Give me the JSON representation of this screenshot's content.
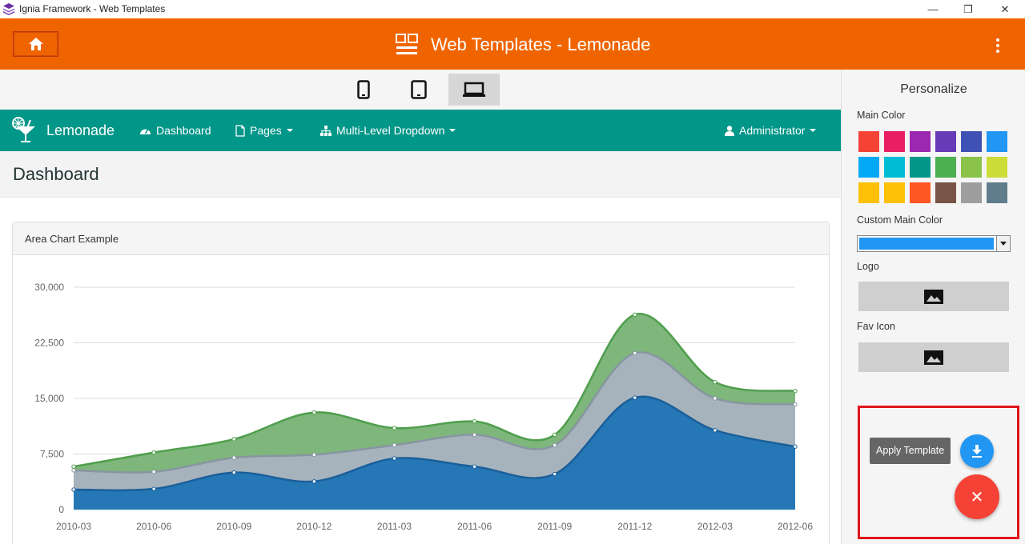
{
  "window": {
    "title": "Ignia Framework - Web Templates",
    "minimize": "—",
    "maximize": "❐",
    "close": "✕"
  },
  "appbar": {
    "title": "Web Templates - Lemonade"
  },
  "preview_nav": {
    "brand": "Lemonade",
    "dashboard": "Dashboard",
    "pages": "Pages",
    "multilevel": "Multi-Level Dropdown",
    "user": "Administrator"
  },
  "page": {
    "title": "Dashboard"
  },
  "card": {
    "title": "Area Chart Example"
  },
  "chart_data": {
    "type": "area",
    "title": "Area Chart Example",
    "categories": [
      "2010-03",
      "2010-06",
      "2010-09",
      "2010-12",
      "2011-03",
      "2011-06",
      "2011-09",
      "2011-12",
      "2012-03",
      "2012-06"
    ],
    "yticks": [
      "0",
      "7,500",
      "15,000",
      "22,500",
      "30,000"
    ],
    "ylim": [
      0,
      30000
    ],
    "stacked": true,
    "series": [
      {
        "values": [
          2700,
          2800,
          5000,
          3800,
          6900,
          5800,
          4800,
          15100,
          10700,
          8500
        ],
        "color": "#2677b5"
      },
      {
        "values": [
          2600,
          2300,
          2000,
          3600,
          1800,
          4300,
          3900,
          6000,
          4300,
          5700
        ],
        "color": "#a7b3bc"
      },
      {
        "values": [
          500,
          2600,
          2500,
          5700,
          2300,
          1800,
          1400,
          5200,
          2200,
          1800
        ],
        "color": "#7eb67c"
      }
    ],
    "grid": true
  },
  "sidepanel": {
    "title": "Personalize",
    "main_color": "Main Color",
    "custom_main_color": "Custom Main Color",
    "custom_color_value": "#2196f3",
    "logo": "Logo",
    "fav_icon": "Fav Icon",
    "swatches": [
      "#f44336",
      "#e91e63",
      "#9c27b0",
      "#673ab7",
      "#3f51b5",
      "#2196f3",
      "#03a9f4",
      "#00bcd4",
      "#009688",
      "#4caf50",
      "#8bc34a",
      "#cddc39",
      "#ffc107",
      "#ffc107",
      "#ff5722",
      "#795548",
      "#9e9e9e",
      "#607d8b"
    ]
  },
  "fab": {
    "tooltip": "Apply Template",
    "close_glyph": "✕"
  },
  "icons": [
    "home-icon",
    "dashboard-icon",
    "menu-kebab-icon",
    "phone-icon",
    "tablet-icon",
    "laptop-icon",
    "cocktail-icon",
    "document-icon",
    "sitemap-icon",
    "user-icon",
    "image-icon",
    "download-icon",
    "close-icon"
  ]
}
